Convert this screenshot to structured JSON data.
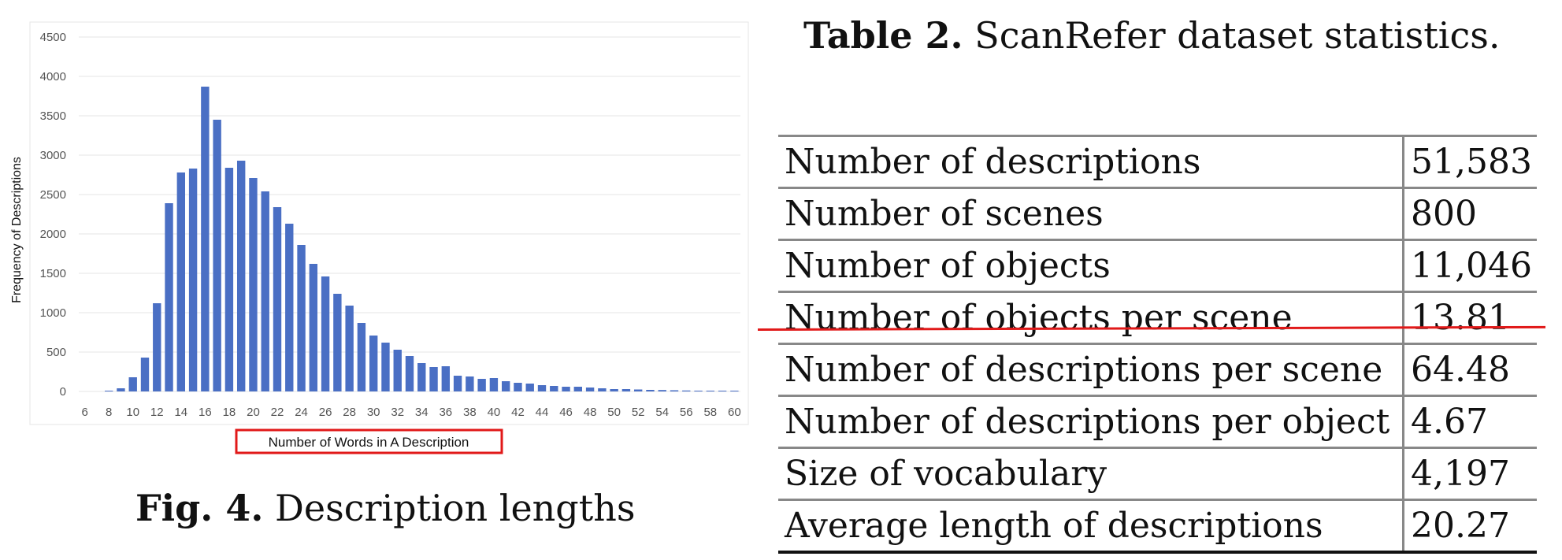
{
  "figure": {
    "caption_label": "Fig. 4.",
    "caption_text": "Description lengths"
  },
  "table": {
    "caption_label": "Table 2.",
    "caption_text": "ScanRefer dataset statistics.",
    "rows": [
      {
        "label": "Number of descriptions",
        "value": "51,583"
      },
      {
        "label": "Number of scenes",
        "value": "800"
      },
      {
        "label": "Number of objects",
        "value": "11,046"
      },
      {
        "label": "Number of objects per scene",
        "value": "13.81"
      },
      {
        "label": "Number of descriptions per scene",
        "value": "64.48"
      },
      {
        "label": "Number of descriptions per object",
        "value": "4.67"
      },
      {
        "label": "Size of vocabulary",
        "value": "4,197"
      },
      {
        "label": "Average length of descriptions",
        "value": "20.27"
      }
    ],
    "highlight_color": "#e11919"
  },
  "chart_data": {
    "type": "bar",
    "title": "",
    "xlabel": "Number of Words in A Description",
    "ylabel": "Frequency of Descriptions",
    "xlabel_box_color": "#e11919",
    "bar_color": "#4a6fc4",
    "grid": true,
    "ylim": [
      0,
      4500
    ],
    "yticks": [
      0,
      500,
      1000,
      1500,
      2000,
      2500,
      3000,
      3500,
      4000,
      4500
    ],
    "xtick_labels": [
      "6",
      "8",
      "10",
      "12",
      "14",
      "16",
      "18",
      "20",
      "22",
      "24",
      "26",
      "28",
      "30",
      "32",
      "34",
      "36",
      "38",
      "40",
      "42",
      "44",
      "46",
      "48",
      "50",
      "52",
      "54",
      "56",
      "58",
      "60"
    ],
    "categories": [
      "6",
      "7",
      "8",
      "9",
      "10",
      "11",
      "12",
      "13",
      "14",
      "15",
      "16",
      "17",
      "18",
      "19",
      "20",
      "21",
      "22",
      "23",
      "24",
      "25",
      "26",
      "27",
      "28",
      "29",
      "30",
      "31",
      "32",
      "33",
      "34",
      "35",
      "36",
      "37",
      "38",
      "39",
      "40",
      "41",
      "42",
      "43",
      "44",
      "45",
      "46",
      "47",
      "48",
      "49",
      "50",
      "51",
      "52",
      "53",
      "54",
      "55",
      "56",
      "57",
      "58",
      "59",
      "60"
    ],
    "values": [
      0,
      0,
      10,
      40,
      180,
      430,
      1120,
      2390,
      2780,
      2830,
      3870,
      3450,
      2840,
      2930,
      2710,
      2540,
      2340,
      2130,
      1860,
      1620,
      1460,
      1240,
      1090,
      870,
      710,
      620,
      530,
      450,
      360,
      310,
      320,
      200,
      190,
      160,
      170,
      130,
      110,
      100,
      80,
      70,
      60,
      60,
      50,
      40,
      30,
      30,
      25,
      20,
      18,
      15,
      12,
      10,
      8,
      5,
      5
    ]
  }
}
